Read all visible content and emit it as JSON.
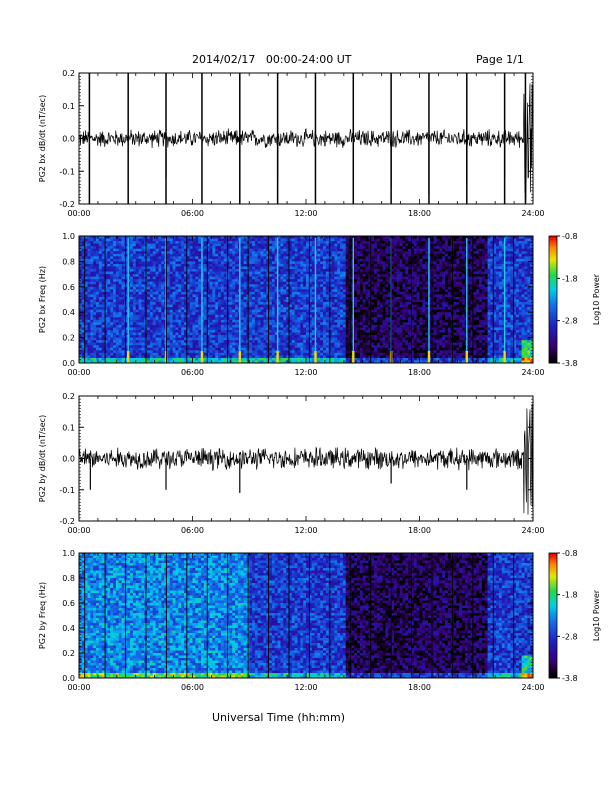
{
  "page": {
    "title": "2014/02/17   00:00-24:00 UT",
    "page_number": "Page 1/1",
    "xaxis_title": "Universal Time (hh:mm)"
  },
  "colors": {
    "trace": "#000000",
    "spec_bg": "#1a24a8"
  },
  "chart_data": [
    {
      "type": "line",
      "ylabel": "PG2 bx dB/dt (nT/sec)",
      "x_ticks": [
        "00:00",
        "06:00",
        "12:00",
        "18:00",
        "24:00"
      ],
      "x_range_hours": [
        0,
        24
      ],
      "ylim": [
        -0.2,
        0.2
      ],
      "y_ticks": [
        "0.2",
        "0.1",
        "0.0",
        "-0.1",
        "-0.2"
      ],
      "y_tick_values": [
        0.2,
        0.1,
        0.0,
        -0.1,
        -0.2
      ],
      "baseline": 0.0,
      "noise_amplitude": 0.02,
      "gap_hours": [
        0.55,
        2.6,
        4.6,
        6.5,
        8.5,
        10.5,
        12.5,
        14.5,
        16.5,
        18.5,
        20.5,
        22.5,
        23.6
      ],
      "spike_hours": [
        4.6,
        10.5,
        16.5,
        18.5,
        20.5,
        22.5
      ],
      "spike_values": [
        -0.12,
        -0.13,
        -0.15,
        -0.17,
        -0.14,
        -0.12
      ],
      "burst_hours": [
        23.5,
        24.0
      ],
      "burst_amplitude": 0.2
    },
    {
      "type": "heatmap",
      "ylabel": "PG2 bx Freq (Hz)",
      "x_ticks": [
        "00:00",
        "06:00",
        "12:00",
        "18:00",
        "24:00"
      ],
      "ylim": [
        0.0,
        1.0
      ],
      "y_ticks": [
        "1.0",
        "0.8",
        "0.6",
        "0.4",
        "0.2",
        "0.0"
      ],
      "y_tick_values": [
        1.0,
        0.8,
        0.6,
        0.4,
        0.2,
        0.0
      ],
      "colorbar": {
        "label": "Log10 Power",
        "range": [
          -3.8,
          -0.8
        ],
        "ticks": [
          "-0.8",
          "-1.8",
          "-2.8",
          "-3.8"
        ],
        "tick_values": [
          -0.8,
          -1.8,
          -2.8,
          -3.8
        ]
      },
      "bright_line_hours": [
        2.6,
        4.6,
        6.5,
        8.5,
        10.5,
        12.5,
        14.5,
        16.5,
        18.5,
        20.5,
        22.5
      ]
    },
    {
      "type": "line",
      "ylabel": "PG2 by dB/dt (nT/sec)",
      "x_ticks": [
        "00:00",
        "06:00",
        "12:00",
        "18:00",
        "24:00"
      ],
      "x_range_hours": [
        0,
        24
      ],
      "ylim": [
        -0.2,
        0.2
      ],
      "y_ticks": [
        "0.2",
        "0.1",
        "0.0",
        "-0.1",
        "-0.2"
      ],
      "y_tick_values": [
        0.2,
        0.1,
        0.0,
        -0.1,
        -0.2
      ],
      "baseline": 0.0,
      "noise_amplitude": 0.025,
      "gap_hours": [],
      "spike_hours": [
        0.6,
        4.6,
        8.5,
        16.5,
        20.5
      ],
      "spike_values": [
        -0.1,
        -0.1,
        -0.11,
        -0.08,
        -0.1
      ],
      "burst_hours": [
        23.5,
        24.0
      ],
      "burst_amplitude": 0.2
    },
    {
      "type": "heatmap",
      "ylabel": "PG2 by Freq (Hz)",
      "x_ticks": [
        "00:00",
        "06:00",
        "12:00",
        "18:00",
        "24:00"
      ],
      "ylim": [
        0.0,
        1.0
      ],
      "y_ticks": [
        "1.0",
        "0.8",
        "0.6",
        "0.4",
        "0.2",
        "0.0"
      ],
      "y_tick_values": [
        1.0,
        0.8,
        0.6,
        0.4,
        0.2,
        0.0
      ],
      "colorbar": {
        "label": "Log10 Power",
        "range": [
          -3.8,
          -0.8
        ],
        "ticks": [
          "-0.8",
          "-1.8",
          "-2.8",
          "-3.8"
        ],
        "tick_values": [
          -0.8,
          -1.8,
          -2.8,
          -3.8
        ]
      },
      "bright_line_hours": []
    }
  ]
}
